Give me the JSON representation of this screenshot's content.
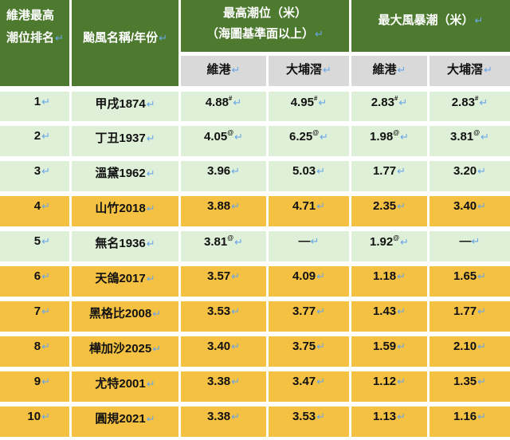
{
  "table": {
    "header": {
      "rank_label_line1": "維港最高",
      "rank_label_line2": "潮位排名",
      "name_label": "颱風名稱/年份",
      "max_level_label_line1": "最高潮位（米）",
      "max_level_label_line2": "（海圖基準面以上）",
      "max_surge_label": "最大風暴潮（米）",
      "sub_columns": [
        "維港",
        "大埔滘",
        "維港",
        "大埔滘"
      ]
    },
    "return_mark": "↵",
    "rows": [
      {
        "rank": "1",
        "name": "甲戌1874",
        "level_vh": "4.88",
        "level_vh_note": "#",
        "level_tpk": "4.95",
        "level_tpk_note": "#",
        "surge_vh": "2.83",
        "surge_vh_note": "#",
        "surge_tpk": "2.83",
        "surge_tpk_note": "#",
        "color": "green"
      },
      {
        "rank": "2",
        "name": "丁丑1937",
        "level_vh": "4.05",
        "level_vh_note": "@",
        "level_tpk": "6.25",
        "level_tpk_note": "@",
        "surge_vh": "1.98",
        "surge_vh_note": "@",
        "surge_tpk": "3.81",
        "surge_tpk_note": "@",
        "color": "green"
      },
      {
        "rank": "3",
        "name": "溫黛1962",
        "level_vh": "3.96",
        "level_vh_note": "",
        "level_tpk": "5.03",
        "level_tpk_note": "",
        "surge_vh": "1.77",
        "surge_vh_note": "",
        "surge_tpk": "3.20",
        "surge_tpk_note": "",
        "color": "green"
      },
      {
        "rank": "4",
        "name": "山竹2018",
        "level_vh": "3.88",
        "level_vh_note": "",
        "level_tpk": "4.71",
        "level_tpk_note": "",
        "surge_vh": "2.35",
        "surge_vh_note": "",
        "surge_tpk": "3.40",
        "surge_tpk_note": "",
        "color": "gold"
      },
      {
        "rank": "5",
        "name": "無名1936",
        "level_vh": "3.81",
        "level_vh_note": "@",
        "level_tpk": "—",
        "level_tpk_note": "",
        "surge_vh": "1.92",
        "surge_vh_note": "@",
        "surge_tpk": "—",
        "surge_tpk_note": "",
        "color": "green"
      },
      {
        "rank": "6",
        "name": "天鴿2017",
        "level_vh": "3.57",
        "level_vh_note": "",
        "level_tpk": "4.09",
        "level_tpk_note": "",
        "surge_vh": "1.18",
        "surge_vh_note": "",
        "surge_tpk": "1.65",
        "surge_tpk_note": "",
        "color": "gold"
      },
      {
        "rank": "7",
        "name": "黑格比2008",
        "level_vh": "3.53",
        "level_vh_note": "",
        "level_tpk": "3.77",
        "level_tpk_note": "",
        "surge_vh": "1.43",
        "surge_vh_note": "",
        "surge_tpk": "1.77",
        "surge_tpk_note": "",
        "color": "gold"
      },
      {
        "rank": "8",
        "name": "樺加沙2025",
        "level_vh": "3.40",
        "level_vh_note": "",
        "level_tpk": "3.75",
        "level_tpk_note": "",
        "surge_vh": "1.59",
        "surge_vh_note": "",
        "surge_tpk": "2.10",
        "surge_tpk_note": "",
        "color": "gold"
      },
      {
        "rank": "9",
        "name": "尤特2001",
        "level_vh": "3.38",
        "level_vh_note": "",
        "level_tpk": "3.47",
        "level_tpk_note": "",
        "surge_vh": "1.12",
        "surge_vh_note": "",
        "surge_tpk": "1.35",
        "surge_tpk_note": "",
        "color": "gold"
      },
      {
        "rank": "10",
        "name": "圓規2021",
        "level_vh": "3.38",
        "level_vh_note": "",
        "level_tpk": "3.53",
        "level_tpk_note": "",
        "surge_vh": "1.13",
        "surge_vh_note": "",
        "surge_tpk": "1.16",
        "surge_tpk_note": "",
        "color": "gold"
      }
    ]
  },
  "colors": {
    "header_green": "#4d7a2f",
    "subheader_gray": "#d9d9d9",
    "row_green": "#dff0d8",
    "row_gold": "#f4c142",
    "return_mark_blue": "#6aa6e8"
  }
}
